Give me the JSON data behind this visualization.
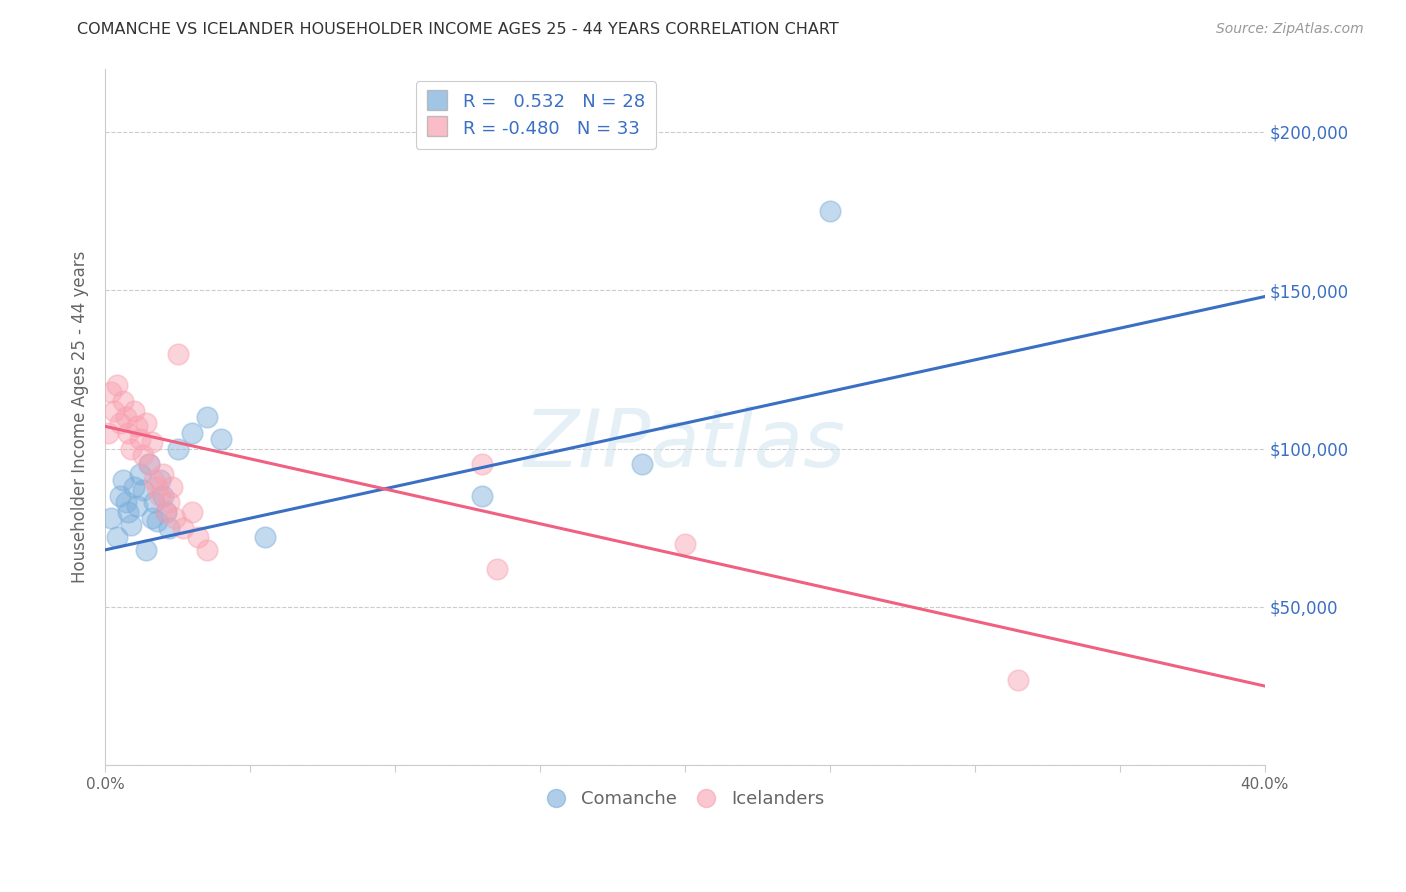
{
  "title": "COMANCHE VS ICELANDER HOUSEHOLDER INCOME AGES 25 - 44 YEARS CORRELATION CHART",
  "source": "Source: ZipAtlas.com",
  "ylabel": "Householder Income Ages 25 - 44 years",
  "x_min": 0.0,
  "x_max": 0.4,
  "y_min": 0,
  "y_max": 220000,
  "x_ticks": [
    0.0,
    0.05,
    0.1,
    0.15,
    0.2,
    0.25,
    0.3,
    0.35,
    0.4
  ],
  "y_ticks": [
    0,
    50000,
    100000,
    150000,
    200000
  ],
  "background_color": "#ffffff",
  "grid_color": "#cccccc",
  "comanche_color": "#7aaddb",
  "icelander_color": "#f8a0b0",
  "trend_blue": "#3a6fc4",
  "trend_pink": "#f06080",
  "legend_label1": "R =   0.532   N = 28",
  "legend_label2": "R = -0.480   N = 33",
  "watermark": "ZIPatlas",
  "comanche_x": [
    0.002,
    0.004,
    0.005,
    0.006,
    0.007,
    0.008,
    0.009,
    0.01,
    0.011,
    0.012,
    0.013,
    0.014,
    0.015,
    0.016,
    0.017,
    0.018,
    0.019,
    0.02,
    0.021,
    0.022,
    0.025,
    0.03,
    0.035,
    0.04,
    0.055,
    0.25,
    0.185,
    0.13
  ],
  "comanche_y": [
    78000,
    72000,
    85000,
    90000,
    83000,
    80000,
    76000,
    88000,
    82000,
    92000,
    87000,
    68000,
    95000,
    78000,
    83000,
    77000,
    90000,
    85000,
    80000,
    75000,
    100000,
    105000,
    110000,
    103000,
    72000,
    175000,
    95000,
    85000
  ],
  "icelander_x": [
    0.001,
    0.002,
    0.003,
    0.004,
    0.005,
    0.006,
    0.007,
    0.008,
    0.009,
    0.01,
    0.011,
    0.012,
    0.013,
    0.014,
    0.015,
    0.016,
    0.017,
    0.018,
    0.019,
    0.02,
    0.021,
    0.022,
    0.023,
    0.024,
    0.025,
    0.027,
    0.03,
    0.032,
    0.035,
    0.13,
    0.2,
    0.315,
    0.135
  ],
  "icelander_y": [
    105000,
    118000,
    112000,
    120000,
    108000,
    115000,
    110000,
    105000,
    100000,
    112000,
    107000,
    103000,
    98000,
    108000,
    95000,
    102000,
    90000,
    88000,
    85000,
    92000,
    80000,
    83000,
    88000,
    78000,
    130000,
    75000,
    80000,
    72000,
    68000,
    95000,
    70000,
    27000,
    62000
  ],
  "blue_line_x": [
    0.0,
    0.4
  ],
  "blue_line_y": [
    68000,
    148000
  ],
  "pink_line_x": [
    0.0,
    0.4
  ],
  "pink_line_y": [
    107000,
    25000
  ]
}
